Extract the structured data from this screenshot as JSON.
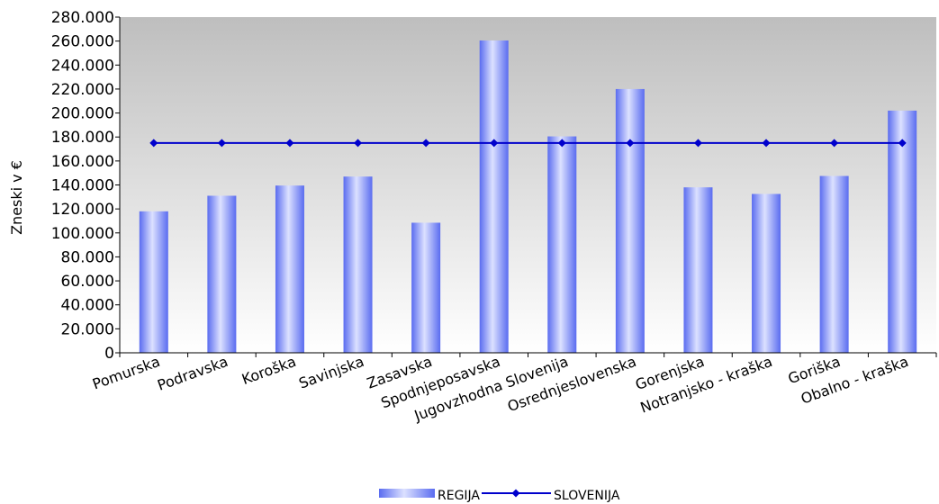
{
  "chart_data": {
    "type": "bar",
    "title": "",
    "xlabel": "",
    "ylabel": "Zneski v €",
    "ylim": [
      0,
      280000
    ],
    "ytick_step": 20000,
    "ytick_labels": [
      "0",
      "20.000",
      "40.000",
      "60.000",
      "80.000",
      "100.000",
      "120.000",
      "140.000",
      "160.000",
      "180.000",
      "200.000",
      "220.000",
      "240.000",
      "260.000",
      "280.000"
    ],
    "grid": false,
    "legend_position": "bottom",
    "categories": [
      "Pomurska",
      "Podravska",
      "Koroška",
      "Savinjska",
      "Zasavska",
      "Spodnjeposavska",
      "Jugovzhodna Slovenija",
      "Osrednjeslovenska",
      "Gorenjska",
      "Notranjsko - kraška",
      "Goriška",
      "Obalno - kraška"
    ],
    "series": [
      {
        "name": "REGIJA",
        "kind": "bar",
        "color": "#6B7EF5",
        "values": [
          118000,
          131000,
          139500,
          147000,
          108500,
          260500,
          180500,
          220000,
          138000,
          132500,
          147500,
          202000
        ]
      },
      {
        "name": "SLOVENIJA",
        "kind": "line",
        "color": "#0000CC",
        "values": [
          175000,
          175000,
          175000,
          175000,
          175000,
          175000,
          175000,
          175000,
          175000,
          175000,
          175000,
          175000
        ]
      }
    ],
    "plot_background": "#C0C0C0"
  }
}
